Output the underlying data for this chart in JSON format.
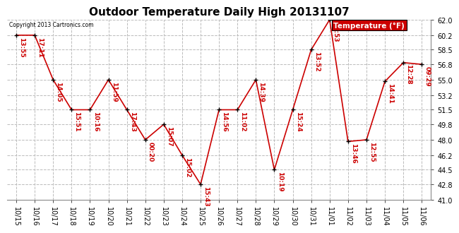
{
  "title": "Outdoor Temperature Daily High 20131107",
  "copyright_text": "Copyright 2013 Cartronics.com",
  "legend_label": "Temperature (°F)",
  "x_labels": [
    "10/15",
    "10/16",
    "10/17",
    "10/18",
    "10/19",
    "10/20",
    "10/21",
    "10/22",
    "10/23",
    "10/24",
    "10/25",
    "10/26",
    "10/27",
    "10/28",
    "10/29",
    "10/30",
    "10/31",
    "11/01",
    "11/02",
    "11/03",
    "11/04",
    "11/05",
    "11/06"
  ],
  "y_values": [
    60.2,
    60.2,
    55.0,
    51.5,
    51.5,
    55.0,
    51.5,
    48.0,
    49.8,
    46.2,
    42.8,
    51.5,
    51.5,
    55.0,
    44.5,
    51.5,
    58.5,
    62.0,
    47.8,
    48.0,
    54.8,
    57.0,
    56.8
  ],
  "time_labels": [
    "13:55",
    "17:11",
    "14:05",
    "15:51",
    "10:16",
    "11:59",
    "17:43",
    "00:20",
    "15:07",
    "15:02",
    "15:43",
    "14:56",
    "11:02",
    "14:39",
    "10:19",
    "15:24",
    "13:52",
    "11:53",
    "13:46",
    "12:55",
    "14:41",
    "12:28",
    "09:29"
  ],
  "ylim": [
    41.0,
    62.0
  ],
  "yticks": [
    41.0,
    42.8,
    44.5,
    46.2,
    48.0,
    49.8,
    51.5,
    53.2,
    55.0,
    56.8,
    58.5,
    60.2,
    62.0
  ],
  "line_color": "#cc0000",
  "marker_color": "#000000",
  "grid_color": "#bbbbbb",
  "bg_color": "#ffffff",
  "title_fontsize": 11,
  "tick_fontsize": 7,
  "time_label_fontsize": 6.5,
  "legend_bg": "#cc0000",
  "legend_text_color": "#ffffff"
}
